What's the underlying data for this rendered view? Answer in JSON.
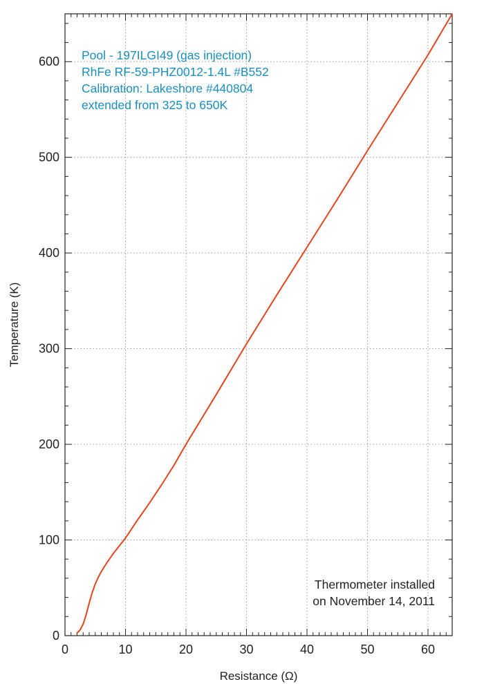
{
  "chart_data": {
    "type": "line",
    "title": "",
    "xlabel": "Resistance (Ω)",
    "ylabel": "Temperature (K)",
    "xlim": [
      0,
      64
    ],
    "ylim": [
      0,
      650
    ],
    "x_ticks": [
      0,
      10,
      20,
      30,
      40,
      50,
      60
    ],
    "y_ticks": [
      0,
      100,
      200,
      300,
      400,
      500,
      600
    ],
    "grid": true,
    "line_color": "#e8431a",
    "series": [
      {
        "x": [
          1.9,
          2.5,
          3.0,
          3.5,
          4.0,
          4.5,
          5.0,
          5.5,
          6.0,
          7.0,
          8.0,
          9.0,
          10.0,
          12.0,
          14.0,
          16.0,
          18.0,
          20.0,
          25.0,
          30.0,
          35.0,
          40.0,
          45.0,
          50.0,
          55.0,
          60.0,
          64.0
        ],
        "y": [
          2,
          6,
          12,
          22,
          34,
          45,
          54,
          61,
          67,
          77,
          86,
          94,
          102,
          121,
          139,
          158,
          178,
          200,
          252,
          305,
          356,
          406,
          456,
          507,
          557,
          607,
          650
        ]
      }
    ],
    "annotations": {
      "info_lines": [
        "Pool - 197ILGI49 (gas injection)",
        "RhFe RF-59-PHZ0012-1.4L #B552",
        "Calibration: Lakeshore #440804",
        "extended from 325 to 650K"
      ],
      "install_lines": [
        "Thermometer installed",
        "on November 14, 2011"
      ]
    },
    "colors": {
      "info_text": "#1a8fbf",
      "line": "#e8431a"
    }
  }
}
